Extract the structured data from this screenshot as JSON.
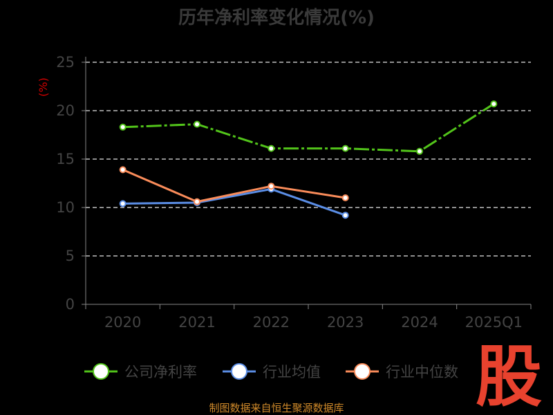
{
  "chart_data": {
    "type": "line",
    "title": "历年净利率变化情况(%)",
    "ylabel": "(%)",
    "categories": [
      "2020",
      "2021",
      "2022",
      "2023",
      "2024",
      "2025Q1"
    ],
    "yticks": [
      "0",
      "5",
      "10",
      "15",
      "20",
      "25"
    ],
    "ylim": [
      0,
      25
    ],
    "grid": "horizontal-dashed",
    "legend_position": "bottom",
    "series": [
      {
        "name": "公司净利率",
        "color": "#52c41a",
        "values": [
          18.3,
          18.6,
          16.1,
          16.1,
          15.8,
          20.7
        ]
      },
      {
        "name": "行业均值",
        "color": "#5b8ee6",
        "values": [
          10.4,
          10.5,
          11.9,
          9.2,
          null,
          null
        ]
      },
      {
        "name": "行业中位数",
        "color": "#fa8c5a",
        "values": [
          13.9,
          10.6,
          12.2,
          11.0,
          null,
          null
        ]
      }
    ]
  },
  "footer": {
    "source": "制图数据来自恒生聚源数据库",
    "logo": "股"
  },
  "colors": {
    "background": "#000000",
    "grid": "#e6e6e6",
    "axis": "#888888"
  }
}
